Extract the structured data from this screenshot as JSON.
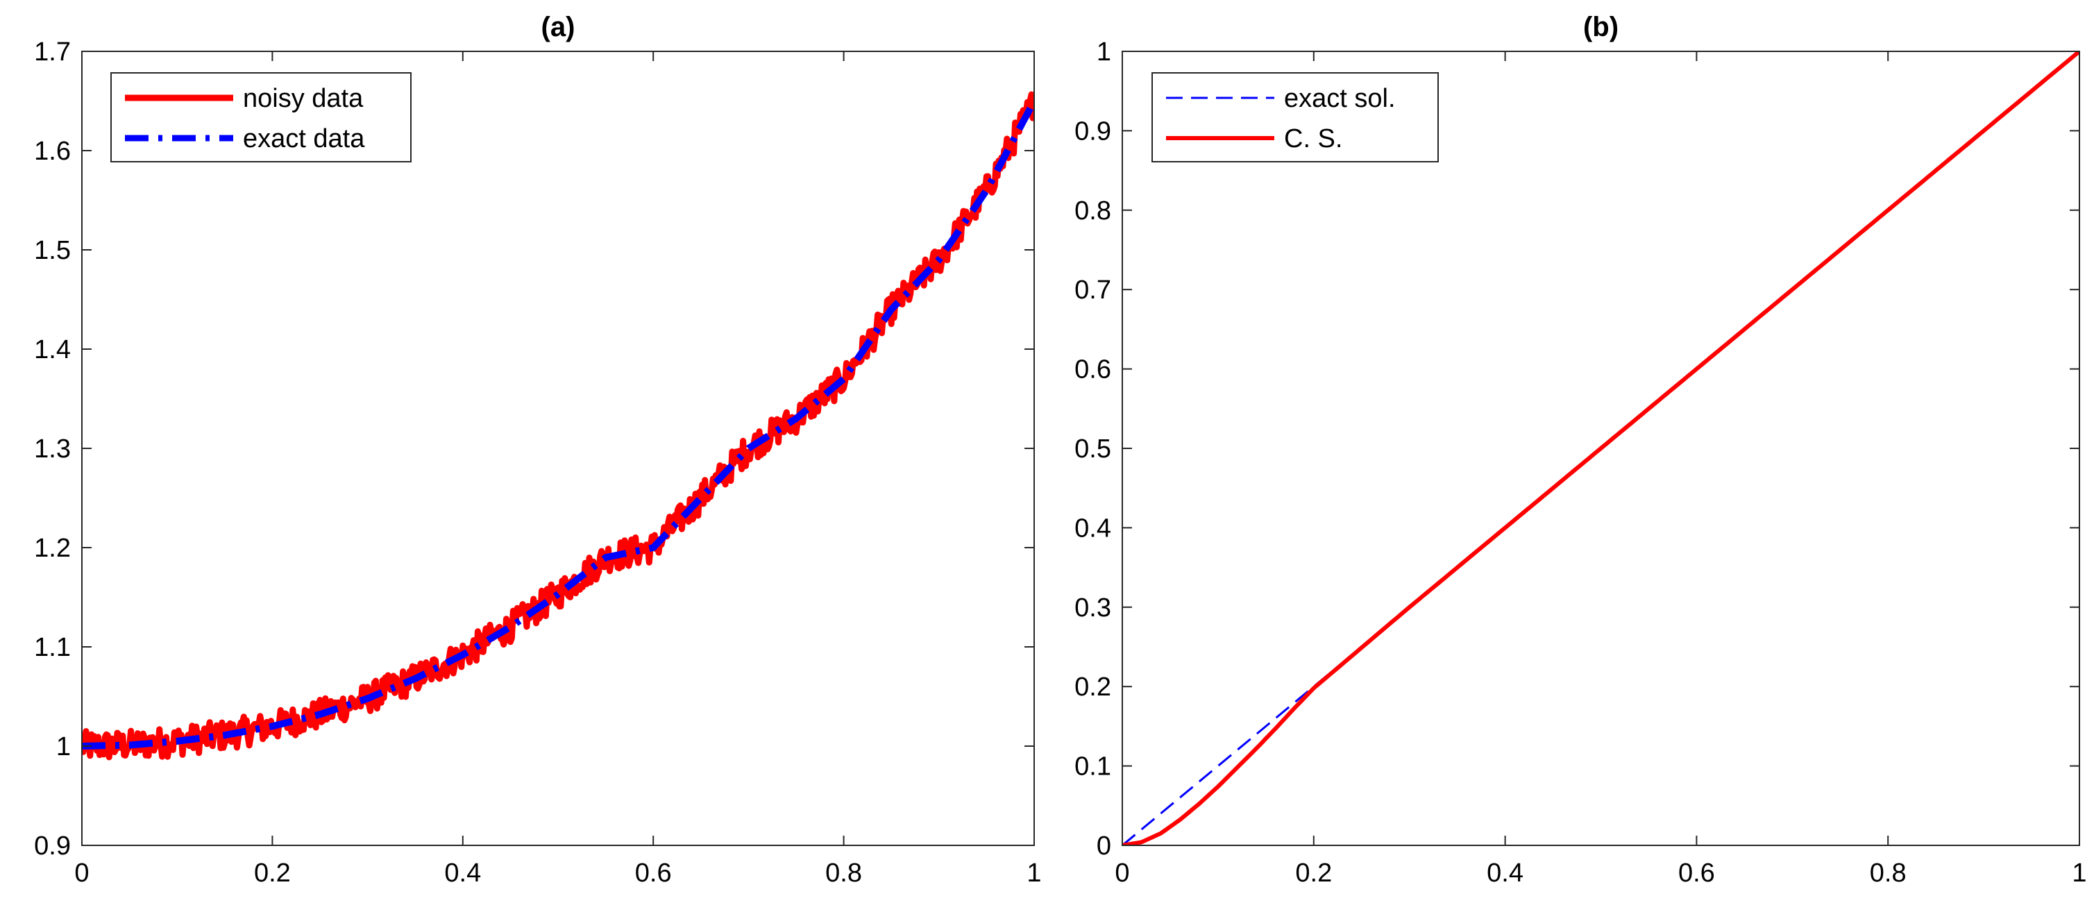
{
  "chart_data": [
    {
      "type": "line",
      "title": "(a)",
      "xlabel": "",
      "ylabel": "",
      "xlim": [
        0,
        1
      ],
      "ylim": [
        0.9,
        1.7
      ],
      "xticks": [
        "0",
        "0.2",
        "0.4",
        "0.6",
        "0.8",
        "1"
      ],
      "yticks": [
        "0.9",
        "1",
        "1.1",
        "1.2",
        "1.3",
        "1.4",
        "1.5",
        "1.6",
        "1.7"
      ],
      "grid": false,
      "legend_position": "top-left",
      "series": [
        {
          "name": "noisy data",
          "color": "#ff0000",
          "style": "solid",
          "noise_amplitude": 0.015,
          "x": [
            0,
            0.05,
            0.1,
            0.15,
            0.2,
            0.25,
            0.3,
            0.35,
            0.4,
            0.45,
            0.5,
            0.55,
            0.6,
            0.65,
            0.7,
            0.75,
            0.8,
            0.85,
            0.9,
            0.95,
            1.0
          ],
          "y": [
            1.0,
            1.001,
            1.005,
            1.011,
            1.02,
            1.032,
            1.048,
            1.068,
            1.092,
            1.12,
            1.153,
            1.19,
            1.2,
            1.25,
            1.3,
            1.33,
            1.37,
            1.44,
            1.49,
            1.56,
            1.65
          ]
        },
        {
          "name": "exact data",
          "color": "#0000ff",
          "style": "dash-dot",
          "x": [
            0,
            0.05,
            0.1,
            0.15,
            0.2,
            0.25,
            0.3,
            0.35,
            0.4,
            0.45,
            0.5,
            0.55,
            0.6,
            0.65,
            0.7,
            0.75,
            0.8,
            0.85,
            0.9,
            0.95,
            1.0
          ],
          "y": [
            1.0,
            1.001,
            1.005,
            1.011,
            1.02,
            1.032,
            1.048,
            1.068,
            1.092,
            1.12,
            1.153,
            1.19,
            1.2,
            1.25,
            1.3,
            1.33,
            1.37,
            1.44,
            1.49,
            1.56,
            1.65
          ]
        }
      ]
    },
    {
      "type": "line",
      "title": "(b)",
      "xlabel": "",
      "ylabel": "",
      "xlim": [
        0,
        1
      ],
      "ylim": [
        0,
        1
      ],
      "xticks": [
        "0",
        "0.2",
        "0.4",
        "0.6",
        "0.8",
        "1"
      ],
      "yticks": [
        "0",
        "0.1",
        "0.2",
        "0.3",
        "0.4",
        "0.5",
        "0.6",
        "0.7",
        "0.8",
        "0.9",
        "1"
      ],
      "grid": false,
      "legend_position": "top-left",
      "series": [
        {
          "name": "exact sol.",
          "color": "#0000ff",
          "style": "dashed",
          "x": [
            0,
            1
          ],
          "y": [
            0,
            1
          ]
        },
        {
          "name": "C. S.",
          "color": "#ff0000",
          "style": "solid",
          "x": [
            0,
            0.02,
            0.04,
            0.06,
            0.08,
            0.1,
            0.12,
            0.14,
            0.16,
            0.18,
            0.2,
            0.3,
            0.4,
            0.5,
            0.6,
            0.7,
            0.8,
            0.9,
            1.0
          ],
          "y": [
            0,
            0.004,
            0.015,
            0.032,
            0.052,
            0.074,
            0.098,
            0.122,
            0.147,
            0.173,
            0.198,
            0.3,
            0.4,
            0.5,
            0.6,
            0.7,
            0.8,
            0.9,
            1.0
          ]
        }
      ]
    }
  ]
}
